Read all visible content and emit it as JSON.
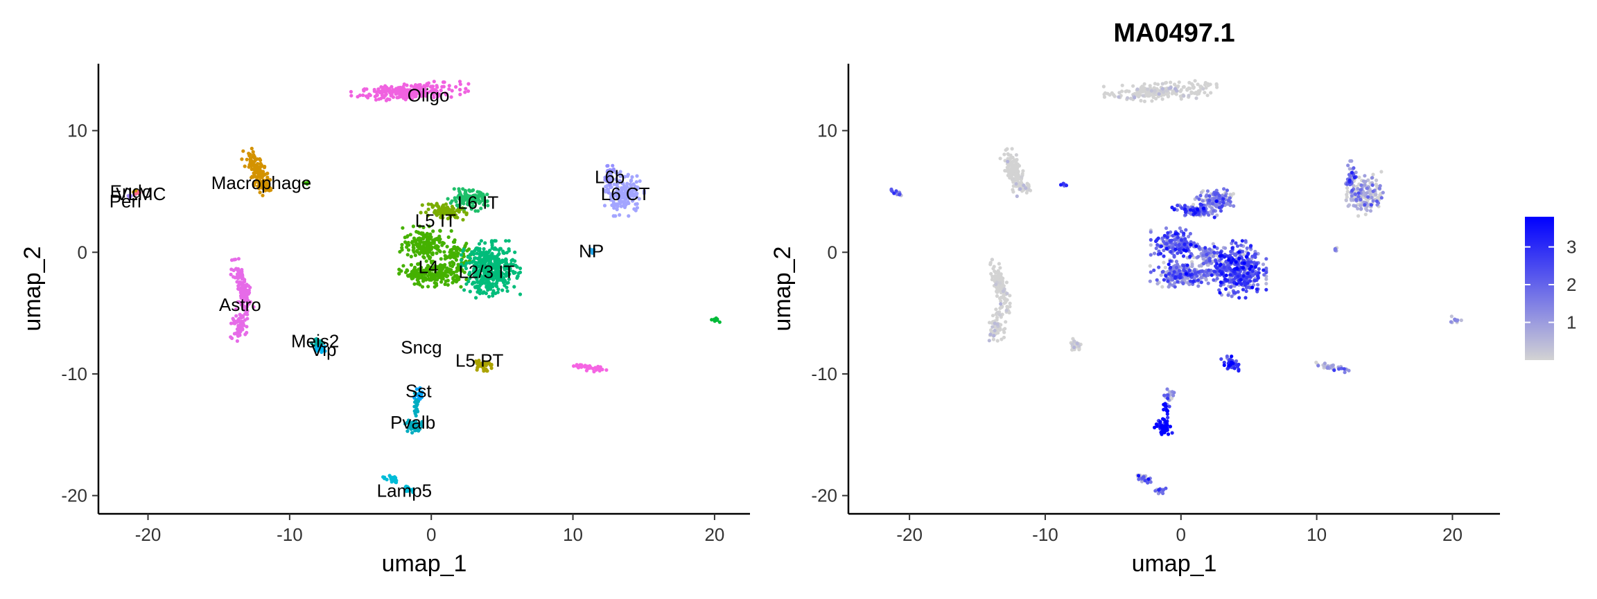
{
  "chart_data": [
    {
      "type": "scatter",
      "title": "",
      "xlabel": "umap_1",
      "ylabel": "umap_2",
      "xlim": [
        -23.5,
        22.5
      ],
      "ylim": [
        -21.5,
        15.5
      ],
      "xticks": [
        -20,
        -10,
        0,
        10,
        20
      ],
      "yticks": [
        -20,
        -10,
        0,
        10
      ],
      "grid": false,
      "legend": "none",
      "clusters": [
        {
          "name": "Oligo",
          "label": "Oligo",
          "color": "#F062E0",
          "label_x": -0.2,
          "label_y": 12.9,
          "regions": [
            {
              "x": -1.5,
              "y": 13.2,
              "rx": 3.2,
              "ry": 0.55,
              "n": 220,
              "rot": 4
            }
          ]
        },
        {
          "name": "Macrophage",
          "label": "Macrophage",
          "color": "#D39200",
          "label_x": -12,
          "label_y": 5.7,
          "regions": [
            {
              "x": -12.3,
              "y": 6.6,
              "rx": 0.5,
              "ry": 1.5,
              "n": 130,
              "rot": 20
            },
            {
              "x": -11.6,
              "y": 5.3,
              "rx": 0.4,
              "ry": 0.35,
              "n": 30,
              "rot": 0
            }
          ]
        },
        {
          "name": "Endo",
          "label": "Endo",
          "color": "#C59900",
          "label_x": -21.2,
          "label_y": 5.0,
          "regions": [
            {
              "x": -21.0,
              "y": 5.0,
              "rx": 0.2,
              "ry": 0.2,
              "n": 6,
              "rot": 0
            }
          ]
        },
        {
          "name": "VLMC",
          "label": "VLMC",
          "color": "#FF6C91",
          "label_x": -20.5,
          "label_y": 4.8,
          "regions": [
            {
              "x": -20.6,
              "y": 4.9,
              "rx": 0.2,
              "ry": 0.15,
              "n": 6,
              "rot": 0
            }
          ]
        },
        {
          "name": "Peri",
          "label": "Peri",
          "color": "#A58AFF",
          "label_x": -21.6,
          "label_y": 4.2,
          "regions": [
            {
              "x": -21.3,
              "y": 4.6,
              "rx": 0.15,
              "ry": 0.15,
              "n": 4,
              "rot": 0
            }
          ]
        },
        {
          "name": "L6b",
          "label": "L6b",
          "color": "#9590FF",
          "label_x": 12.6,
          "label_y": 6.2,
          "regions": [
            {
              "x": 12.5,
              "y": 6.2,
              "rx": 0.3,
              "ry": 1.0,
              "n": 40,
              "rot": 0
            }
          ]
        },
        {
          "name": "L6 CT",
          "label": "L6 CT",
          "color": "#A3A5FF",
          "label_x": 13.7,
          "label_y": 4.8,
          "regions": [
            {
              "x": 13.6,
              "y": 4.8,
              "rx": 1.1,
              "ry": 1.4,
              "n": 170,
              "rot": 0
            }
          ]
        },
        {
          "name": "L6 IT",
          "label": "L6 IT",
          "color": "#1FBF6A",
          "label_x": 3.3,
          "label_y": 4.1,
          "regions": [
            {
              "x": 2.6,
              "y": 4.3,
              "rx": 1.2,
              "ry": 0.7,
              "n": 130,
              "rot": 0
            }
          ]
        },
        {
          "name": "L5 IT",
          "label": "L5 IT",
          "color": "#7AAD00",
          "label_x": 0.3,
          "label_y": 2.6,
          "regions": [
            {
              "x": 1.0,
              "y": 3.4,
              "rx": 1.3,
              "ry": 0.45,
              "n": 90,
              "rot": -10
            }
          ]
        },
        {
          "name": "L4",
          "label": "L4",
          "color": "#45B100",
          "label_x": -0.2,
          "label_y": -1.2,
          "regions": [
            {
              "x": -0.4,
              "y": 0.7,
              "rx": 1.4,
              "ry": 1.1,
              "n": 170,
              "rot": 0
            },
            {
              "x": 0.2,
              "y": -1.8,
              "rx": 1.9,
              "ry": 0.8,
              "n": 220,
              "rot": 0
            },
            {
              "x": 1.8,
              "y": -0.3,
              "rx": 0.9,
              "ry": 1.0,
              "n": 70,
              "rot": 0
            }
          ]
        },
        {
          "name": "L2/3 IT",
          "label": "L2/3 IT",
          "color": "#00BC7A",
          "label_x": 3.9,
          "label_y": -1.6,
          "regions": [
            {
              "x": 4.2,
              "y": -1.4,
              "rx": 1.6,
              "ry": 1.8,
              "n": 400,
              "rot": 0
            }
          ]
        },
        {
          "name": "NP",
          "label": "NP",
          "color": "#22A5E8",
          "label_x": 11.3,
          "label_y": 0.1,
          "regions": [
            {
              "x": 11.4,
              "y": 0.2,
              "rx": 0.15,
              "ry": 0.2,
              "n": 8,
              "rot": 0
            }
          ]
        },
        {
          "name": "Astro",
          "label": "Astro",
          "color": "#E66BE8",
          "label_x": -13.5,
          "label_y": -4.3,
          "regions": [
            {
              "x": -13.3,
              "y": -3.0,
              "rx": 0.45,
              "ry": 1.9,
              "n": 110,
              "rot": 12
            },
            {
              "x": -13.6,
              "y": -6.0,
              "rx": 0.5,
              "ry": 1.0,
              "n": 60,
              "rot": -5
            }
          ]
        },
        {
          "name": "Meis2",
          "label": "Meis2",
          "color": "#00A9A0",
          "label_x": -8.2,
          "label_y": -7.3,
          "regions": [
            {
              "x": -8.0,
              "y": -7.5,
              "rx": 0.35,
              "ry": 0.4,
              "n": 30,
              "rot": 0
            }
          ]
        },
        {
          "name": "Vip",
          "label": "Vip",
          "color": "#00B4EF",
          "label_x": -7.6,
          "label_y": -8.0,
          "regions": [
            {
              "x": -7.7,
              "y": -7.9,
              "rx": 0.3,
              "ry": 0.3,
              "n": 20,
              "rot": 0
            }
          ]
        },
        {
          "name": "Sncg",
          "label": "Sncg",
          "color": "#00A3FF",
          "label_x": -0.7,
          "label_y": -7.8,
          "regions": []
        },
        {
          "name": "L5 PT",
          "label": "L5 PT",
          "color": "#ABA300",
          "label_x": 3.4,
          "label_y": -8.9,
          "regions": [
            {
              "x": 3.6,
              "y": -9.2,
              "rx": 0.5,
              "ry": 0.5,
              "n": 40,
              "rot": 0
            }
          ]
        },
        {
          "name": "Sst",
          "label": "Sst",
          "color": "#00A5FF",
          "label_x": -0.9,
          "label_y": -11.4,
          "regions": [
            {
              "x": -0.9,
              "y": -11.6,
              "rx": 0.3,
              "ry": 0.5,
              "n": 20,
              "rot": 0
            }
          ]
        },
        {
          "name": "Pvalb",
          "label": "Pvalb",
          "color": "#00ACC0",
          "label_x": -1.3,
          "label_y": -14.0,
          "regions": [
            {
              "x": -1.3,
              "y": -14.3,
              "rx": 0.5,
              "ry": 0.55,
              "n": 50,
              "rot": 0
            },
            {
              "x": -1.1,
              "y": -12.7,
              "rx": 0.2,
              "ry": 0.9,
              "n": 20,
              "rot": 0
            }
          ]
        },
        {
          "name": "Lamp5",
          "label": "Lamp5",
          "color": "#00BCD8",
          "label_x": -1.9,
          "label_y": -19.6,
          "regions": [
            {
              "x": -2.8,
              "y": -18.6,
              "rx": 0.6,
              "ry": 0.25,
              "n": 25,
              "rot": -25
            },
            {
              "x": -1.6,
              "y": -19.5,
              "rx": 0.35,
              "ry": 0.25,
              "n": 15,
              "rot": -30
            }
          ]
        },
        {
          "name": "unlabeled-1",
          "label": "",
          "color": "#F564E3",
          "label_x": 0,
          "label_y": 0,
          "regions": [
            {
              "x": 11.2,
              "y": -9.5,
              "rx": 1.0,
              "ry": 0.2,
              "n": 40,
              "rot": -10
            }
          ]
        },
        {
          "name": "unlabeled-2",
          "label": "",
          "color": "#00BA38",
          "label_x": 0,
          "label_y": 0,
          "regions": [
            {
              "x": 20.2,
              "y": -5.6,
              "rx": 0.3,
              "ry": 0.2,
              "n": 10,
              "rot": -30
            }
          ]
        },
        {
          "name": "unlabeled-3",
          "label": "",
          "color": "#39B600",
          "label_x": 0,
          "label_y": 0,
          "regions": [
            {
              "x": -8.8,
              "y": 5.7,
              "rx": 0.25,
              "ry": 0.15,
              "n": 6,
              "rot": 0
            }
          ]
        }
      ]
    },
    {
      "type": "scatter",
      "title": "MA0497.1",
      "xlabel": "umap_1",
      "ylabel": "umap_2",
      "xlim": [
        -24.5,
        23.5
      ],
      "ylim": [
        -21.5,
        15.5
      ],
      "xticks": [
        -20,
        -10,
        0,
        10,
        20
      ],
      "yticks": [
        -20,
        -10,
        0,
        10
      ],
      "grid": false,
      "legend": "right",
      "color_low": "#D3D3D3",
      "color_high": "#0000FF",
      "colorbar": {
        "min": 0,
        "max": 3.8,
        "ticks": [
          1,
          2,
          3
        ]
      },
      "regions": [
        {
          "x": -1.5,
          "y": 13.2,
          "rx": 3.2,
          "ry": 0.55,
          "n": 220,
          "rot": 4,
          "mean": 0.05
        },
        {
          "x": -12.3,
          "y": 6.6,
          "rx": 0.5,
          "ry": 1.5,
          "n": 130,
          "rot": 20,
          "mean": 0.1
        },
        {
          "x": -11.6,
          "y": 5.3,
          "rx": 0.4,
          "ry": 0.35,
          "n": 30,
          "rot": 0,
          "mean": 0.1
        },
        {
          "x": -21.0,
          "y": 4.9,
          "rx": 0.4,
          "ry": 0.2,
          "n": 12,
          "rot": -20,
          "mean": 2.0
        },
        {
          "x": -8.6,
          "y": 5.6,
          "rx": 0.25,
          "ry": 0.15,
          "n": 8,
          "rot": 0,
          "mean": 1.6
        },
        {
          "x": 12.5,
          "y": 6.2,
          "rx": 0.3,
          "ry": 1.0,
          "n": 40,
          "rot": 0,
          "mean": 1.2
        },
        {
          "x": 13.6,
          "y": 4.8,
          "rx": 1.1,
          "ry": 1.4,
          "n": 170,
          "rot": 0,
          "mean": 0.3
        },
        {
          "x": 2.6,
          "y": 4.3,
          "rx": 1.2,
          "ry": 0.7,
          "n": 130,
          "rot": 0,
          "mean": 1.0
        },
        {
          "x": 1.0,
          "y": 3.4,
          "rx": 1.3,
          "ry": 0.45,
          "n": 90,
          "rot": -10,
          "mean": 1.6
        },
        {
          "x": -0.4,
          "y": 0.7,
          "rx": 1.4,
          "ry": 1.1,
          "n": 170,
          "rot": 0,
          "mean": 1.9
        },
        {
          "x": 0.2,
          "y": -1.8,
          "rx": 1.9,
          "ry": 0.8,
          "n": 220,
          "rot": 0,
          "mean": 1.3
        },
        {
          "x": 1.8,
          "y": -0.3,
          "rx": 0.9,
          "ry": 1.0,
          "n": 70,
          "rot": 0,
          "mean": 1.0
        },
        {
          "x": 4.2,
          "y": -1.4,
          "rx": 1.6,
          "ry": 1.8,
          "n": 400,
          "rot": 0,
          "mean": 2.1
        },
        {
          "x": 11.4,
          "y": 0.2,
          "rx": 0.15,
          "ry": 0.2,
          "n": 8,
          "rot": 0,
          "mean": 0.8
        },
        {
          "x": -13.3,
          "y": -3.0,
          "rx": 0.45,
          "ry": 1.9,
          "n": 110,
          "rot": 12,
          "mean": 0.05
        },
        {
          "x": -13.6,
          "y": -6.0,
          "rx": 0.5,
          "ry": 1.0,
          "n": 60,
          "rot": -5,
          "mean": 0.05
        },
        {
          "x": -7.8,
          "y": -7.6,
          "rx": 0.4,
          "ry": 0.4,
          "n": 40,
          "rot": 0,
          "mean": 0.1
        },
        {
          "x": 3.6,
          "y": -9.2,
          "rx": 0.5,
          "ry": 0.5,
          "n": 40,
          "rot": 0,
          "mean": 3.0
        },
        {
          "x": 11.2,
          "y": -9.5,
          "rx": 1.0,
          "ry": 0.2,
          "n": 40,
          "rot": -10,
          "mean": 0.2
        },
        {
          "x": 20.2,
          "y": -5.6,
          "rx": 0.3,
          "ry": 0.2,
          "n": 10,
          "rot": -30,
          "mean": 1.0
        },
        {
          "x": -0.9,
          "y": -11.8,
          "rx": 0.3,
          "ry": 0.5,
          "n": 20,
          "rot": 0,
          "mean": 0.3
        },
        {
          "x": -1.3,
          "y": -14.3,
          "rx": 0.5,
          "ry": 0.55,
          "n": 50,
          "rot": 0,
          "mean": 3.6
        },
        {
          "x": -1.1,
          "y": -12.7,
          "rx": 0.2,
          "ry": 0.9,
          "n": 20,
          "rot": 0,
          "mean": 3.2
        },
        {
          "x": -2.8,
          "y": -18.6,
          "rx": 0.6,
          "ry": 0.25,
          "n": 25,
          "rot": -25,
          "mean": 1.4
        },
        {
          "x": -1.6,
          "y": -19.5,
          "rx": 0.35,
          "ry": 0.25,
          "n": 15,
          "rot": -30,
          "mean": 1.6
        }
      ]
    }
  ]
}
